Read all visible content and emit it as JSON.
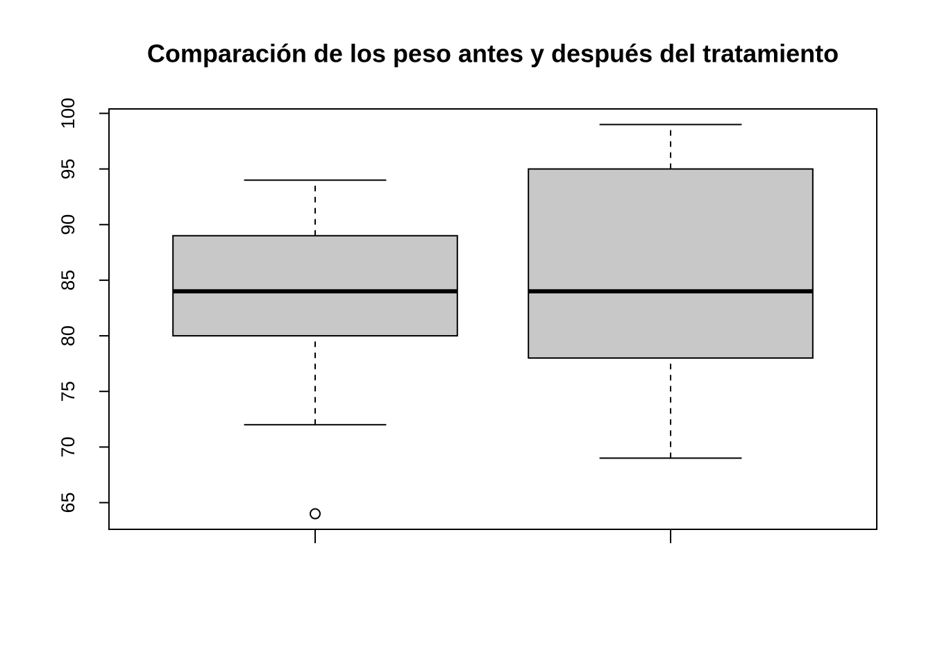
{
  "chart_data": {
    "type": "box",
    "title": "Comparación de los peso antes y después  del tratamiento",
    "categories": [
      null,
      null
    ],
    "boxes": [
      {
        "whisker_low": 72,
        "q1": 80,
        "median": 84,
        "q3": 89,
        "whisker_high": 94,
        "outliers": [
          64
        ]
      },
      {
        "whisker_low": 69,
        "q1": 78,
        "median": 84,
        "q3": 95,
        "whisker_high": 99,
        "outliers": []
      }
    ],
    "color": "#c8c8c8",
    "ylim": [
      62.6,
      100.4
    ],
    "yticks": [
      65,
      70,
      75,
      80,
      85,
      90,
      95,
      100
    ]
  }
}
